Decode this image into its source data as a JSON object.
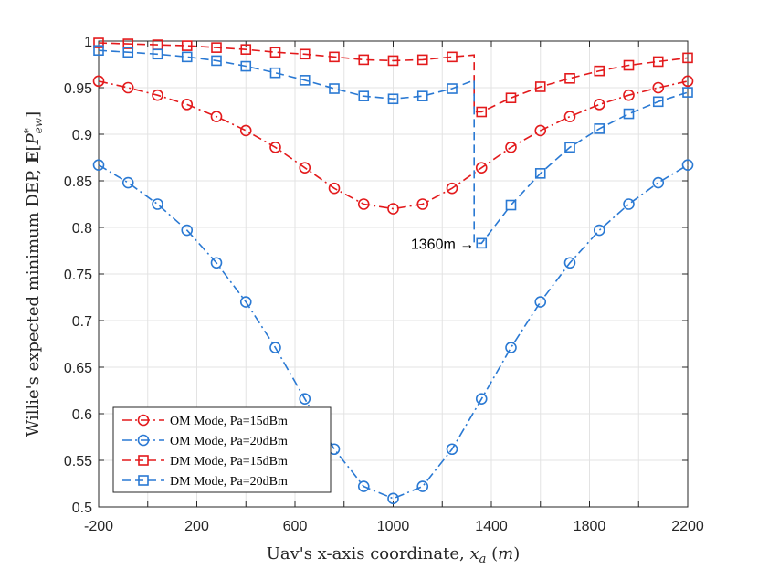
{
  "chart_data": {
    "type": "line",
    "title": "",
    "xlabel": "Uav's x-axis coordinate, x_a (m)",
    "ylabel": "Willie's expected minimum DEP, E[P*_ew]",
    "xlim": [
      -200,
      2200
    ],
    "ylim": [
      0.5,
      1.0
    ],
    "xticks": [
      -200,
      200,
      600,
      1000,
      1400,
      1800,
      2200
    ],
    "xtick_labels": [
      "-200",
      "200",
      "600",
      "1000",
      "1400",
      "1800",
      "2200"
    ],
    "yticks": [
      0.5,
      0.55,
      0.6,
      0.65,
      0.7,
      0.75,
      0.8,
      0.85,
      0.9,
      0.95,
      1.0
    ],
    "ytick_labels": [
      "0.5",
      "0.55",
      "0.6",
      "0.65",
      "0.7",
      "0.75",
      "0.8",
      "0.85",
      "0.9",
      "0.95",
      "1"
    ],
    "grid": true,
    "legend_position": "bottom-left",
    "annotation": {
      "text": "1360m →",
      "x": 1360,
      "y": 0.783
    },
    "series": [
      {
        "name": "OM Mode, Pa=15dBm",
        "color": "#e31a1c",
        "marker": "circle",
        "dash": "dashdot",
        "x": [
          -200,
          -80,
          40,
          160,
          280,
          400,
          520,
          640,
          760,
          880,
          1000,
          1120,
          1240,
          1360,
          1480,
          1600,
          1720,
          1840,
          1960,
          2080,
          2200
        ],
        "y": [
          0.957,
          0.95,
          0.942,
          0.932,
          0.919,
          0.904,
          0.886,
          0.864,
          0.842,
          0.825,
          0.82,
          0.825,
          0.842,
          0.864,
          0.886,
          0.904,
          0.919,
          0.932,
          0.942,
          0.95,
          0.957
        ]
      },
      {
        "name": "OM Mode, Pa=20dBm",
        "color": "#2a79d3",
        "marker": "circle",
        "dash": "dashdot",
        "x": [
          -200,
          -80,
          40,
          160,
          280,
          400,
          520,
          640,
          760,
          880,
          1000,
          1120,
          1240,
          1360,
          1480,
          1600,
          1720,
          1840,
          1960,
          2080,
          2200
        ],
        "y": [
          0.867,
          0.848,
          0.825,
          0.797,
          0.762,
          0.72,
          0.671,
          0.616,
          0.562,
          0.522,
          0.509,
          0.522,
          0.562,
          0.616,
          0.671,
          0.72,
          0.762,
          0.797,
          0.825,
          0.848,
          0.867
        ]
      },
      {
        "name": "DM Mode, Pa=15dBm",
        "color": "#e31a1c",
        "marker": "square",
        "dash": "dashed",
        "x": [
          -200,
          -80,
          40,
          160,
          280,
          400,
          520,
          640,
          760,
          880,
          1000,
          1120,
          1240,
          1360,
          1480,
          1600,
          1720,
          1840,
          1960,
          2080,
          2200
        ],
        "y": [
          0.998,
          0.997,
          0.996,
          0.995,
          0.993,
          0.991,
          0.988,
          0.986,
          0.983,
          0.98,
          0.979,
          0.98,
          0.983,
          0.924,
          0.939,
          0.951,
          0.96,
          0.968,
          0.974,
          0.978,
          0.982
        ]
      },
      {
        "name": "DM Mode, Pa=20dBm",
        "color": "#2a79d3",
        "marker": "square",
        "dash": "dashed",
        "x": [
          -200,
          -80,
          40,
          160,
          280,
          400,
          520,
          640,
          760,
          880,
          1000,
          1120,
          1240,
          1360,
          1480,
          1600,
          1720,
          1840,
          1960,
          2080,
          2200
        ],
        "y": [
          0.99,
          0.988,
          0.986,
          0.983,
          0.979,
          0.973,
          0.966,
          0.958,
          0.949,
          0.941,
          0.938,
          0.941,
          0.949,
          0.783,
          0.824,
          0.858,
          0.886,
          0.906,
          0.922,
          0.935,
          0.945
        ]
      }
    ],
    "jump_x": 1330,
    "jump_before": {
      "dm15": 0.985,
      "dm20": 0.958
    }
  }
}
